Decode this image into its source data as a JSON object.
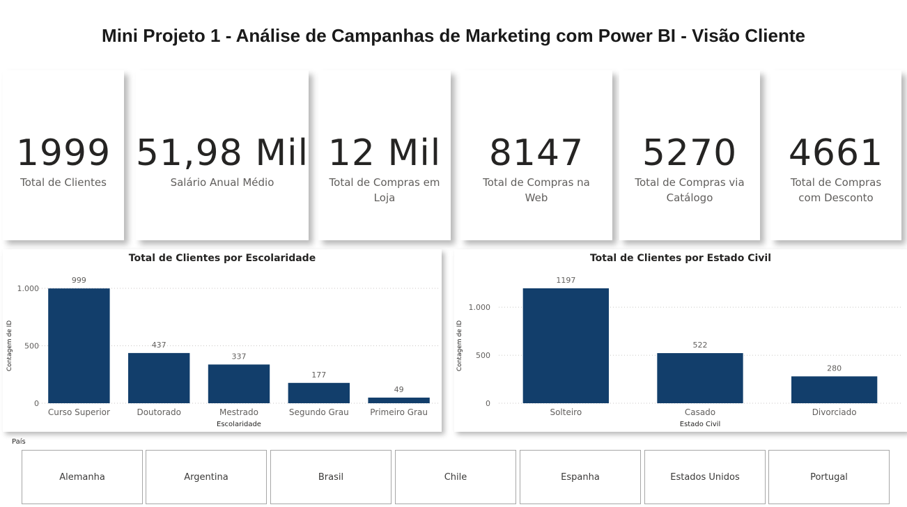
{
  "page": {
    "title": "Mini Projeto 1 - Análise de Campanhas de Marketing com Power BI - Visão Cliente"
  },
  "kpis": [
    {
      "value": "1999",
      "label": "Total de Clientes"
    },
    {
      "value": "51,98 Mil",
      "label": "Salário Anual Médio"
    },
    {
      "value": "12 Mil",
      "label": "Total de Compras em Loja"
    },
    {
      "value": "8147",
      "label": "Total de Compras na Web"
    },
    {
      "value": "5270",
      "label": "Total de Compras via Catálogo"
    },
    {
      "value": "4661",
      "label": "Total de Compras com Desconto"
    }
  ],
  "chart_data": [
    {
      "type": "bar",
      "title": "Total de Clientes por Escolaridade",
      "xlabel": "Escolaridade",
      "ylabel": "Contagem de ID",
      "categories": [
        "Curso Superior",
        "Doutorado",
        "Mestrado",
        "Segundo Grau",
        "Primeiro Grau"
      ],
      "values": [
        999,
        437,
        337,
        177,
        49
      ],
      "ylim": [
        0,
        1000
      ],
      "yticks": [
        0,
        500,
        1000
      ],
      "ytick_labels": [
        "0",
        "500",
        "1.000"
      ],
      "grid": true,
      "color": "#123e6b"
    },
    {
      "type": "bar",
      "title": "Total de Clientes por Estado Civil",
      "xlabel": "Estado Civil",
      "ylabel": "Contagem de ID",
      "categories": [
        "Solteiro",
        "Casado",
        "Divorciado"
      ],
      "values": [
        1197,
        522,
        280
      ],
      "ylim": [
        0,
        1197
      ],
      "yticks": [
        0,
        500,
        1000
      ],
      "ytick_labels": [
        "0",
        "500",
        "1.000"
      ],
      "grid": true,
      "color": "#123e6b"
    }
  ],
  "slicer": {
    "label": "País",
    "items": [
      "Alemanha",
      "Argentina",
      "Brasil",
      "Chile",
      "Espanha",
      "Estados Unidos",
      "Portugal"
    ]
  }
}
